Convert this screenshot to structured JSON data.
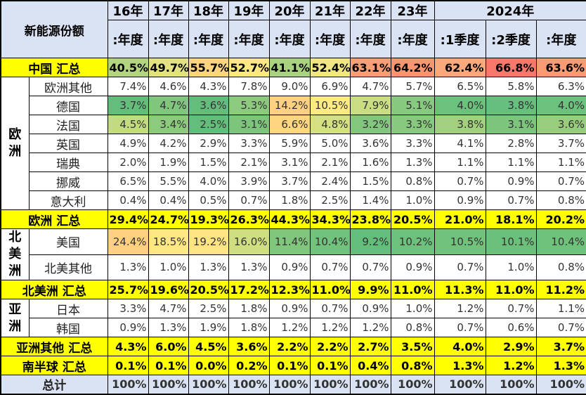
{
  "header": {
    "corner": "新能源份额",
    "years": [
      "16年",
      "17年",
      "18年",
      "19年",
      "20年",
      "21年",
      "22年",
      "23年",
      "2024年"
    ],
    "periods": [
      ":年度",
      ":年度",
      ":年度",
      ":年度",
      ":年度",
      ":年度",
      ":年度",
      ":年度",
      ":1季度",
      ":2季度",
      ":年度"
    ]
  },
  "rows": [
    {
      "label": "中国 汇总",
      "type": "total",
      "values": [
        "40.5%",
        "49.7%",
        "55.7%",
        "52.7%",
        "41.1%",
        "52.4%",
        "63.1%",
        "64.2%",
        "62.4%",
        "66.8%",
        "63.6%"
      ],
      "colors": [
        "#b3d580",
        "#e3e283",
        "#fdd580",
        "#fde883",
        "#a8d27f",
        "#f1e683",
        "#f99f75",
        "#f9966f",
        "#fba97a",
        "#f8786b",
        "#fa9b73"
      ]
    },
    {
      "group": "欧洲",
      "label": "欧洲其他",
      "type": "detail",
      "values": [
        "7.4%",
        "4.6%",
        "4.3%",
        "7.8%",
        "9.0%",
        "6.9%",
        "4.7%",
        "5.7%",
        "6.5%",
        "5.8%",
        "6.3%"
      ]
    },
    {
      "group": "欧洲",
      "label": "德国",
      "type": "detail",
      "values": [
        "3.7%",
        "4.7%",
        "3.6%",
        "5.3%",
        "14.2%",
        "10.5%",
        "7.9%",
        "5.1%",
        "4.0%",
        "3.8%",
        "4.0%"
      ],
      "colors": [
        "#63be7b",
        "#80c67d",
        "#63be7b",
        "#8ccb7e",
        "#fdd17f",
        "#ffeb84",
        "#c9dd81",
        "#87c97e",
        "#6cc17c",
        "#66bf7c",
        "#6cc17c"
      ]
    },
    {
      "group": "欧洲",
      "label": "法国",
      "type": "detail",
      "values": [
        "4.5%",
        "3.4%",
        "2.5%",
        "3.1%",
        "6.6%",
        "4.8%",
        "3.2%",
        "3.3%",
        "3.8%",
        "3.1%",
        "3.6%"
      ],
      "colors": [
        "#c2db80",
        "#8ccb7e",
        "#63be7b",
        "#7dc57d",
        "#fed580",
        "#d5e082",
        "#82c77d",
        "#87c97e",
        "#a2d07f",
        "#7dc57d",
        "#98cd7e"
      ]
    },
    {
      "group": "欧洲",
      "label": "英国",
      "type": "detail",
      "values": [
        "4.9%",
        "4.2%",
        "2.9%",
        "3.3%",
        "5.9%",
        "5.0%",
        "3.6%",
        "3.3%",
        "4.1%",
        "2.8%",
        "3.7%"
      ]
    },
    {
      "group": "欧洲",
      "label": "瑞典",
      "type": "detail",
      "values": [
        "2.0%",
        "1.9%",
        "1.5%",
        "2.1%",
        "3.1%",
        "2.1%",
        "1.6%",
        "1.3%",
        "1.1%",
        "1.1%",
        "1.1%"
      ]
    },
    {
      "group": "欧洲",
      "label": "挪威",
      "type": "detail",
      "values": [
        "6.5%",
        "5.5%",
        "4.0%",
        "3.9%",
        "3.7%",
        "2.4%",
        "1.5%",
        "0.8%",
        "0.7%",
        "0.9%",
        "0.7%"
      ]
    },
    {
      "group": "欧洲",
      "label": "意大利",
      "type": "detail",
      "values": [
        "0.4%",
        "0.4%",
        "0.5%",
        "0.7%",
        "1.8%",
        "2.5%",
        "1.4%",
        "1.0%",
        "0.9%",
        "0.7%",
        "0.8%"
      ]
    },
    {
      "label": "欧洲 汇总",
      "type": "total",
      "values": [
        "29.4%",
        "24.7%",
        "19.3%",
        "26.3%",
        "44.3%",
        "34.3%",
        "23.8%",
        "20.5%",
        "21.0%",
        "18.1%",
        "20.2%"
      ]
    },
    {
      "group": "北美洲",
      "label": "美国",
      "type": "detail",
      "values": [
        "24.4%",
        "18.5%",
        "19.2%",
        "16.0%",
        "11.4%",
        "10.4%",
        "9.2%",
        "10.2%",
        "10.5%",
        "10.1%",
        "10.4%"
      ],
      "colors": [
        "#fdd17f",
        "#fee883",
        "#fee482",
        "#d0de82",
        "#80c67d",
        "#70c27c",
        "#63be7b",
        "#6cc17c",
        "#70c27c",
        "#6bc17c",
        "#6fc27c"
      ]
    },
    {
      "group": "北美洲",
      "label": "北美其他",
      "type": "detail",
      "values": [
        "1.3%",
        "1.0%",
        "1.3%",
        "1.3%",
        "0.9%",
        "0.7%",
        "0.7%",
        "0.9%",
        "0.7%",
        "1.0%",
        "0.8%"
      ]
    },
    {
      "label": "北美洲 汇总",
      "type": "total",
      "values": [
        "25.7%",
        "19.6%",
        "20.5%",
        "17.2%",
        "12.3%",
        "11.0%",
        "9.9%",
        "11.0%",
        "11.3%",
        "11.0%",
        "11.2%"
      ]
    },
    {
      "group": "亚洲",
      "label": "日本",
      "type": "detail",
      "values": [
        "3.3%",
        "4.7%",
        "2.5%",
        "1.8%",
        "0.9%",
        "0.7%",
        "0.9%",
        "1.0%",
        "1.2%",
        "0.7%",
        "1.1%"
      ]
    },
    {
      "group": "亚洲",
      "label": "韩国",
      "type": "detail",
      "values": [
        "0.9%",
        "1.3%",
        "1.9%",
        "1.8%",
        "1.2%",
        "1.2%",
        "1.2%",
        "0.8%",
        "0.7%",
        "0.6%",
        "0.7%"
      ]
    },
    {
      "label": "亚洲其他 汇总",
      "type": "total",
      "values": [
        "4.3%",
        "6.0%",
        "4.5%",
        "3.6%",
        "2.2%",
        "2.2%",
        "2.7%",
        "3.5%",
        "4.0%",
        "2.9%",
        "3.7%"
      ]
    },
    {
      "label": "南半球 汇总",
      "type": "total",
      "values": [
        "0.1%",
        "0.1%",
        "0.0%",
        "0.2%",
        "0.1%",
        "0.1%",
        "0.4%",
        "0.8%",
        "1.3%",
        "1.2%",
        "1.3%"
      ]
    },
    {
      "label": "总计",
      "type": "sum",
      "values": [
        "100%",
        "100%",
        "100%",
        "100%",
        "100%",
        "100%",
        "100%",
        "100%",
        "100%",
        "100%",
        "100%"
      ]
    }
  ],
  "colors": {
    "header_bg": "#dae3f3",
    "total_bg": "#ffff00"
  }
}
